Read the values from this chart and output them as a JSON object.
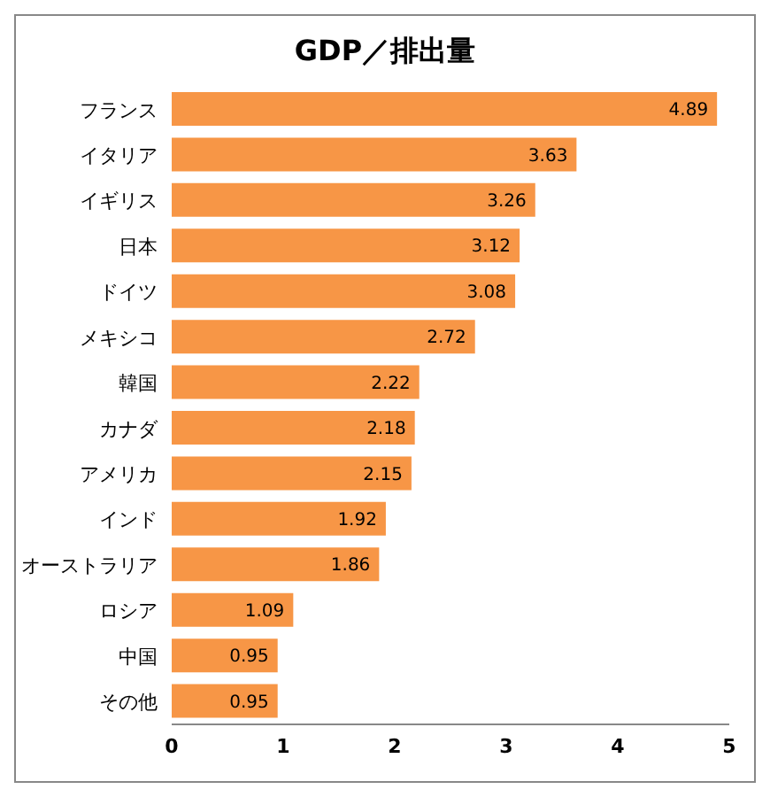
{
  "chart_data": {
    "type": "bar",
    "orientation": "horizontal",
    "title": "GDP／排出量",
    "categories": [
      "フランス",
      "イタリア",
      "イギリス",
      "日本",
      "ドイツ",
      "メキシコ",
      "韓国",
      "カナダ",
      "アメリカ",
      "インド",
      "オーストラリア",
      "ロシア",
      "中国",
      "その他"
    ],
    "values": [
      4.89,
      3.63,
      3.26,
      3.12,
      3.08,
      2.72,
      2.22,
      2.18,
      2.15,
      1.92,
      1.86,
      1.09,
      0.95,
      0.95
    ],
    "color": "#f79646",
    "xlim": [
      0,
      5
    ],
    "xticks": [
      0,
      1,
      2,
      3,
      4,
      5
    ],
    "data_labels": true,
    "grid": false
  }
}
